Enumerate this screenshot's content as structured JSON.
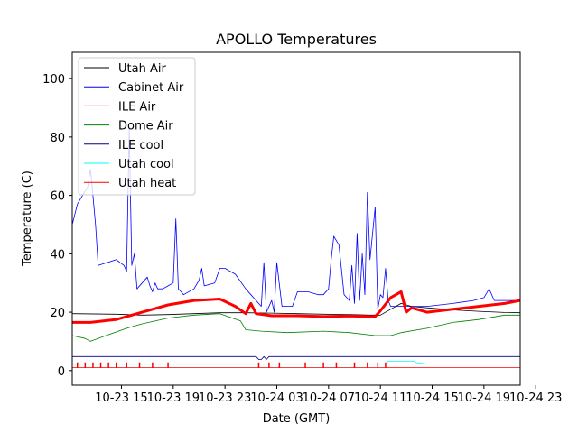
{
  "chart_data": {
    "type": "line",
    "title": "APOLLO Temperatures",
    "xlabel": "Date (GMT)",
    "ylabel": "Temperature (C)",
    "xlim": [
      -0.35,
      8.3
    ],
    "ylim": [
      -5,
      109
    ],
    "yticks": [
      0,
      20,
      40,
      60,
      80,
      100
    ],
    "xticks": [
      {
        "x": 0.6,
        "label": "10-23 15"
      },
      {
        "x": 1.6,
        "label": "10-23 19"
      },
      {
        "x": 2.6,
        "label": "10-23 23"
      },
      {
        "x": 3.6,
        "label": "10-24 03"
      },
      {
        "x": 4.6,
        "label": "10-24 07"
      },
      {
        "x": 5.6,
        "label": "10-24 11"
      },
      {
        "x": 6.6,
        "label": "10-24 15"
      },
      {
        "x": 7.6,
        "label": "10-24 19"
      },
      {
        "x": 8.6,
        "label": "10-24 23"
      }
    ],
    "legend_position": "top-left",
    "series": [
      {
        "name": "Utah Air",
        "color": "#000000",
        "x": [
          -0.35,
          0.5,
          1.0,
          1.5,
          2.0,
          2.5,
          3.0,
          3.5,
          4.0,
          4.5,
          5.0,
          5.4,
          5.6,
          5.8,
          6.0,
          6.2,
          6.5,
          7.0,
          7.5,
          8.0,
          8.3
        ],
        "y": [
          19.5,
          19.3,
          19.0,
          19.2,
          19.5,
          19.8,
          19.8,
          19.7,
          19.5,
          19.3,
          19.2,
          19.0,
          19.0,
          21.0,
          23.0,
          22.0,
          21.5,
          20.8,
          20.3,
          19.9,
          19.8
        ]
      },
      {
        "name": "Cabinet Air",
        "color": "#0000ff",
        "x": [
          -0.35,
          -0.25,
          -0.15,
          -0.05,
          0.0,
          0.05,
          0.1,
          0.15,
          0.5,
          0.65,
          0.7,
          0.75,
          0.8,
          0.85,
          0.9,
          1.0,
          1.1,
          1.15,
          1.2,
          1.25,
          1.3,
          1.4,
          1.5,
          1.6,
          1.65,
          1.7,
          1.75,
          1.8,
          2.0,
          2.1,
          2.15,
          2.2,
          2.4,
          2.5,
          2.6,
          2.8,
          3.0,
          3.1,
          3.2,
          3.3,
          3.35,
          3.4,
          3.5,
          3.55,
          3.6,
          3.7,
          3.8,
          3.9,
          4.0,
          4.2,
          4.4,
          4.5,
          4.6,
          4.65,
          4.7,
          4.8,
          4.9,
          5.0,
          5.05,
          5.1,
          5.15,
          5.2,
          5.25,
          5.3,
          5.35,
          5.4,
          5.5,
          5.55,
          5.6,
          5.65,
          5.7,
          5.75,
          5.8,
          6.0,
          6.2,
          6.5,
          7.0,
          7.4,
          7.6,
          7.7,
          7.8,
          8.0,
          8.3
        ],
        "y": [
          50,
          57,
          60,
          63,
          69,
          60,
          50,
          36,
          38,
          36,
          34,
          83,
          36,
          40,
          28,
          30,
          32,
          29,
          27,
          30,
          28,
          28,
          29,
          30,
          52,
          28,
          27,
          26,
          28,
          31,
          35,
          29,
          30,
          35,
          35,
          33,
          28,
          26,
          24,
          22,
          37,
          20,
          24,
          20,
          37,
          22,
          22,
          22,
          27,
          27,
          26,
          26,
          28,
          38,
          46,
          43,
          26,
          24,
          36,
          23,
          47,
          24,
          40,
          26,
          61,
          38,
          56,
          21,
          26,
          25,
          35,
          24,
          22,
          22,
          22,
          22,
          23,
          24,
          25,
          28,
          24,
          24,
          24
        ]
      },
      {
        "name": "ILE Air",
        "color": "#ff0000",
        "x": [
          -0.35,
          0.0,
          0.5,
          1.0,
          1.5,
          2.0,
          2.5,
          2.8,
          3.0,
          3.1,
          3.2,
          3.5,
          4.0,
          4.5,
          5.0,
          5.4,
          5.5,
          5.6,
          5.8,
          6.0,
          6.1,
          6.2,
          6.5,
          7.0,
          7.5,
          8.0,
          8.3
        ],
        "y": [
          16.5,
          16.5,
          17.5,
          20.0,
          22.5,
          24.0,
          24.5,
          22.0,
          19.5,
          23.0,
          19.5,
          18.8,
          18.8,
          18.5,
          18.7,
          18.5,
          18.5,
          20.5,
          25.0,
          27.0,
          20.0,
          21.5,
          20.0,
          21.0,
          22.0,
          23.0,
          24.0
        ]
      },
      {
        "name": "Dome Air",
        "color": "#008000",
        "x": [
          -0.35,
          -0.1,
          0.0,
          0.3,
          0.7,
          1.0,
          1.5,
          2.0,
          2.5,
          2.9,
          3.0,
          3.3,
          3.8,
          4.5,
          5.0,
          5.5,
          5.8,
          6.0,
          6.5,
          7.0,
          7.5,
          8.0,
          8.3
        ],
        "y": [
          12.0,
          11.0,
          10.0,
          12.0,
          14.5,
          16.0,
          18.0,
          19.0,
          19.5,
          17.0,
          14.0,
          13.5,
          13.0,
          13.5,
          13.0,
          12.0,
          12.0,
          13.0,
          14.5,
          16.5,
          17.5,
          19.0,
          19.0
        ]
      },
      {
        "name": "ILE cool",
        "color": "#00008b",
        "x": [
          -0.35,
          3.2,
          3.25,
          3.3,
          3.35,
          3.4,
          3.45,
          8.3
        ],
        "y": [
          4.8,
          4.8,
          3.8,
          3.8,
          4.8,
          3.8,
          4.8,
          4.8
        ]
      },
      {
        "name": "Utah cool",
        "color": "#00ffff",
        "x": [
          -0.35,
          5.7,
          5.75,
          6.25,
          6.3,
          6.5,
          8.3
        ],
        "y": [
          2.2,
          2.2,
          3.2,
          3.2,
          2.7,
          2.3,
          2.3
        ]
      },
      {
        "name": "Utah heat",
        "color": "#ff0000",
        "x": [
          -0.35,
          8.3
        ],
        "y": [
          1.0,
          1.0
        ]
      }
    ],
    "heat_pulses_x": [
      -0.25,
      -0.1,
      0.05,
      0.2,
      0.35,
      0.5,
      0.7,
      0.95,
      1.2,
      1.5,
      3.25,
      3.45,
      3.65,
      4.15,
      4.5,
      4.75,
      5.1,
      5.35,
      5.55,
      5.7
    ]
  }
}
